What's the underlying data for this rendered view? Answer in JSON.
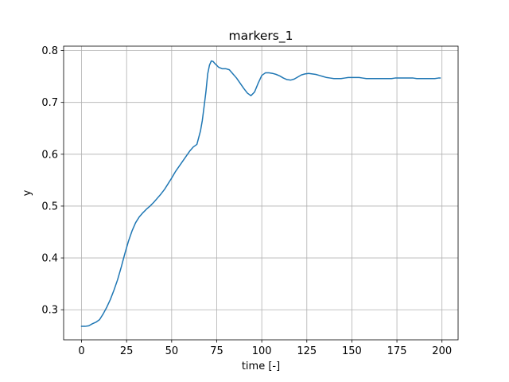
{
  "chart_data": {
    "type": "line",
    "title": "markers_1",
    "xlabel": "time [-]",
    "ylabel": "y",
    "xlim": [
      -9.95,
      208.95
    ],
    "ylim": [
      0.242,
      0.8085
    ],
    "xticks": [
      0,
      25,
      50,
      75,
      100,
      125,
      150,
      175,
      200
    ],
    "yticks": [
      0.3,
      0.4,
      0.5,
      0.6,
      0.7,
      0.8
    ],
    "grid": true,
    "colors": {
      "line": "#1f77b4",
      "grid": "#b0b0b0",
      "axes": "#000000"
    },
    "series": [
      {
        "x": [
          0,
          2,
          4,
          6,
          8,
          10,
          12,
          14,
          16,
          18,
          20,
          22,
          24,
          26,
          28,
          30,
          32,
          34,
          36,
          38,
          40,
          42,
          44,
          46,
          48,
          50,
          52,
          54,
          56,
          58,
          60,
          62,
          64,
          66,
          67,
          68,
          69,
          70,
          71,
          72,
          73,
          74,
          76,
          78,
          80,
          82,
          84,
          86,
          88,
          90,
          92,
          94,
          96,
          98,
          100,
          102,
          104,
          106,
          108,
          110,
          112,
          114,
          116,
          118,
          120,
          122,
          124,
          126,
          128,
          130,
          132,
          134,
          136,
          138,
          140,
          142,
          144,
          146,
          148,
          150,
          152,
          154,
          156,
          158,
          160,
          162,
          164,
          166,
          168,
          170,
          172,
          174,
          176,
          178,
          180,
          182,
          184,
          186,
          188,
          190,
          192,
          194,
          196,
          198,
          199
        ],
        "y": [
          0.268,
          0.268,
          0.269,
          0.273,
          0.276,
          0.281,
          0.292,
          0.305,
          0.32,
          0.338,
          0.358,
          0.382,
          0.408,
          0.432,
          0.452,
          0.468,
          0.479,
          0.487,
          0.494,
          0.5,
          0.507,
          0.515,
          0.523,
          0.532,
          0.543,
          0.554,
          0.566,
          0.576,
          0.586,
          0.596,
          0.606,
          0.614,
          0.619,
          0.645,
          0.665,
          0.692,
          0.72,
          0.755,
          0.772,
          0.78,
          0.779,
          0.775,
          0.768,
          0.765,
          0.765,
          0.763,
          0.755,
          0.747,
          0.737,
          0.727,
          0.718,
          0.713,
          0.72,
          0.737,
          0.752,
          0.757,
          0.757,
          0.756,
          0.754,
          0.751,
          0.747,
          0.744,
          0.743,
          0.745,
          0.749,
          0.753,
          0.755,
          0.756,
          0.755,
          0.754,
          0.752,
          0.75,
          0.748,
          0.747,
          0.746,
          0.746,
          0.746,
          0.747,
          0.748,
          0.748,
          0.748,
          0.748,
          0.747,
          0.746,
          0.746,
          0.746,
          0.746,
          0.746,
          0.746,
          0.746,
          0.746,
          0.747,
          0.747,
          0.747,
          0.747,
          0.747,
          0.747,
          0.746,
          0.746,
          0.746,
          0.746,
          0.746,
          0.746,
          0.747,
          0.747
        ]
      }
    ]
  }
}
